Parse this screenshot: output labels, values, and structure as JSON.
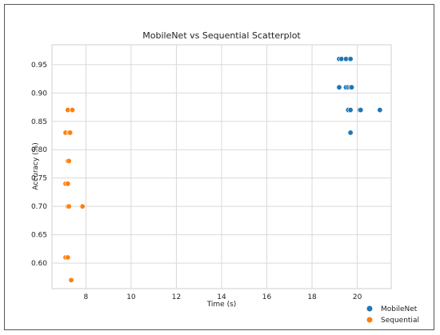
{
  "chart_data": {
    "type": "scatter",
    "title": "MobileNet vs Sequential Scatterplot",
    "xlabel": "Time (s)",
    "ylabel": "Accuracy (%)",
    "xlim": [
      6.5,
      21.5
    ],
    "ylim": [
      0.555,
      0.985
    ],
    "xticks": [
      8,
      10,
      12,
      14,
      16,
      18,
      20
    ],
    "xtick_labels": [
      "8",
      "10",
      "12",
      "14",
      "16",
      "18",
      "20"
    ],
    "yticks": [
      0.6,
      0.65,
      0.7,
      0.75,
      0.8,
      0.85,
      0.9,
      0.95
    ],
    "ytick_labels": [
      "0.60",
      "0.65",
      "0.70",
      "0.75",
      "0.80",
      "0.85",
      "0.90",
      "0.95"
    ],
    "grid": true,
    "legend_position": "bottom-right, outside plot",
    "series": [
      {
        "name": "MobileNet",
        "color": "#1f77b4",
        "points": [
          [
            19.2,
            0.96
          ],
          [
            19.3,
            0.96
          ],
          [
            19.5,
            0.96
          ],
          [
            19.7,
            0.96
          ],
          [
            19.2,
            0.91
          ],
          [
            19.5,
            0.91
          ],
          [
            19.6,
            0.91
          ],
          [
            19.7,
            0.91
          ],
          [
            19.75,
            0.91
          ],
          [
            19.6,
            0.87
          ],
          [
            19.7,
            0.87
          ],
          [
            20.1,
            0.87
          ],
          [
            20.15,
            0.87
          ],
          [
            21.0,
            0.87
          ],
          [
            19.7,
            0.83
          ]
        ]
      },
      {
        "name": "Sequential",
        "color": "#ff7f0e",
        "points": [
          [
            7.2,
            0.87
          ],
          [
            7.4,
            0.87
          ],
          [
            7.1,
            0.83
          ],
          [
            7.25,
            0.83
          ],
          [
            7.3,
            0.83
          ],
          [
            7.2,
            0.78
          ],
          [
            7.25,
            0.78
          ],
          [
            7.1,
            0.74
          ],
          [
            7.2,
            0.74
          ],
          [
            7.2,
            0.7
          ],
          [
            7.25,
            0.7
          ],
          [
            7.85,
            0.7
          ],
          [
            7.1,
            0.61
          ],
          [
            7.2,
            0.61
          ],
          [
            7.35,
            0.57
          ]
        ]
      }
    ]
  }
}
